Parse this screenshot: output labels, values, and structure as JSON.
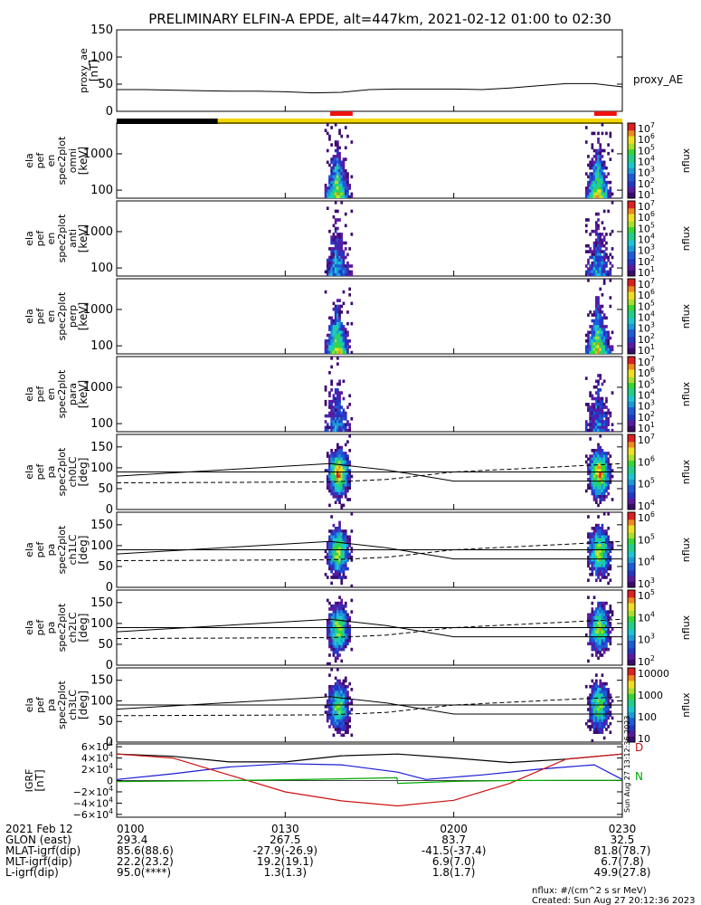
{
  "title": "PRELIMINARY ELFIN-A EPDE, alt=447km, 2021-02-12 01:00 to 02:30",
  "colors": {
    "frame": "#000000",
    "bar_black": "#000000",
    "bar_yellow": "#f2d600",
    "bar_red": "#ee1111",
    "igrf_x": "#000000",
    "igrf_y": "#1a1ad6",
    "igrf_z": "#cc1111",
    "igrf_d": "#00aa00",
    "spec_violet": "#3a0b6e",
    "spec_blue": "#1f5bd8",
    "spec_cyan": "#19c7d6",
    "spec_green": "#35d835",
    "spec_yellow": "#f0e020",
    "spec_red": "#e02020"
  },
  "chart_data": {
    "type": "multi-panel",
    "x_range": [
      "01:00",
      "02:30"
    ],
    "x_tick_labels": [
      "0100",
      "0130",
      "0200",
      "0230"
    ],
    "panels": [
      {
        "id": "proxy_ae",
        "type": "line",
        "ylabel": [
          "proxy_ae",
          "[nT]"
        ],
        "legend": "proxy_AE",
        "ylim": [
          0,
          150
        ],
        "yticks": [
          "150",
          "100",
          "50",
          "0"
        ],
        "ytick_values": [
          150,
          100,
          50,
          0
        ],
        "series": [
          {
            "x": [
              0,
              5,
              10,
              15,
              20,
              25,
              30,
              35,
              40,
              45,
              50,
              55,
              60,
              65,
              70,
              75,
              80,
              85,
              90
            ],
            "values": [
              40,
              40,
              39,
              38,
              37,
              37,
              36,
              34,
              35,
              40,
              41,
              41,
              41,
              40,
              43,
              47,
              51,
              51,
              45
            ]
          }
        ],
        "status_bar": [
          {
            "from": 0,
            "to": 18,
            "color": "black"
          },
          {
            "from": 18,
            "to": 90,
            "color": "yellow"
          }
        ],
        "red_marks": [
          [
            38,
            42
          ],
          [
            85,
            89
          ]
        ]
      },
      {
        "id": "en_omni",
        "type": "spectrogram",
        "ylabel": [
          "ela",
          "pef",
          "en",
          "spec2plot",
          "omni",
          "[keV]"
        ],
        "yticks": [
          "1000",
          "100"
        ],
        "ytick_values": [
          1000,
          100
        ],
        "ylim": [
          60,
          7000
        ],
        "log": true,
        "colorbar": {
          "label": "nflux",
          "ticks": [
            "10^7",
            "10^6",
            "10^5",
            "10^4",
            "10^3",
            "10^2",
            "10^1"
          ]
        }
      },
      {
        "id": "en_anti",
        "type": "spectrogram",
        "ylabel": [
          "ela",
          "pef",
          "en",
          "spec2plot",
          "anti",
          "[keV]"
        ],
        "yticks": [
          "1000",
          "100"
        ],
        "ytick_values": [
          1000,
          100
        ],
        "ylim": [
          60,
          7000
        ],
        "log": true,
        "colorbar": {
          "label": "nflux",
          "ticks": [
            "10^7",
            "10^6",
            "10^5",
            "10^4",
            "10^3",
            "10^2",
            "10^1"
          ]
        }
      },
      {
        "id": "en_perp",
        "type": "spectrogram",
        "ylabel": [
          "ela",
          "pef",
          "en",
          "spec2plot",
          "perp",
          "[keV]"
        ],
        "yticks": [
          "1000",
          "100"
        ],
        "ytick_values": [
          1000,
          100
        ],
        "ylim": [
          60,
          7000
        ],
        "log": true,
        "colorbar": {
          "label": "nflux",
          "ticks": [
            "10^7",
            "10^6",
            "10^5",
            "10^4",
            "10^3",
            "10^2",
            "10^1"
          ]
        }
      },
      {
        "id": "en_para",
        "type": "spectrogram",
        "ylabel": [
          "ela",
          "pef",
          "en",
          "spec2plot",
          "para",
          "[keV]"
        ],
        "yticks": [
          "1000",
          "100"
        ],
        "ytick_values": [
          1000,
          100
        ],
        "ylim": [
          60,
          7000
        ],
        "log": true,
        "colorbar": {
          "label": "nflux",
          "ticks": [
            "10^7",
            "10^6",
            "10^5",
            "10^4",
            "10^3",
            "10^2",
            "10^1"
          ]
        }
      },
      {
        "id": "pa_ch0",
        "type": "spectrogram",
        "ylabel": [
          "ela",
          "pef",
          "pa",
          "spec2plot",
          "ch0LC",
          "[deg]"
        ],
        "yticks": [
          "150",
          "100",
          "50",
          "0"
        ],
        "ytick_values": [
          150,
          100,
          50,
          0
        ],
        "ylim": [
          0,
          180
        ],
        "colorbar": {
          "label": "nflux",
          "ticks": [
            "10^7",
            "10^6",
            "10^5",
            "10^4"
          ]
        }
      },
      {
        "id": "pa_ch1",
        "type": "spectrogram",
        "ylabel": [
          "ela",
          "pef",
          "pa",
          "spec2plot",
          "ch1LC",
          "[deg]"
        ],
        "yticks": [
          "150",
          "100",
          "50",
          "0"
        ],
        "ytick_values": [
          150,
          100,
          50,
          0
        ],
        "ylim": [
          0,
          180
        ],
        "colorbar": {
          "label": "nflux",
          "ticks": [
            "10^6",
            "10^5",
            "10^4",
            "10^3"
          ]
        }
      },
      {
        "id": "pa_ch2",
        "type": "spectrogram",
        "ylabel": [
          "ela",
          "pef",
          "pa",
          "spec2plot",
          "ch2LC",
          "[deg]"
        ],
        "yticks": [
          "150",
          "100",
          "50",
          "0"
        ],
        "ytick_values": [
          150,
          100,
          50,
          0
        ],
        "ylim": [
          0,
          180
        ],
        "colorbar": {
          "label": "nflux",
          "ticks": [
            "10^5",
            "10^4",
            "10^3",
            "10^2"
          ]
        }
      },
      {
        "id": "pa_ch3",
        "type": "spectrogram",
        "ylabel": [
          "ela",
          "pef",
          "pa",
          "spec2plot",
          "ch3LC",
          "[deg]"
        ],
        "yticks": [
          "150",
          "100",
          "50",
          "0"
        ],
        "ytick_values": [
          150,
          100,
          50,
          0
        ],
        "ylim": [
          0,
          180
        ],
        "colorbar": {
          "label": "nflux",
          "ticks": [
            "10000",
            "1000",
            "100",
            "10"
          ]
        }
      },
      {
        "id": "igrf",
        "type": "line",
        "ylabel": [
          "IGRF",
          "[nT]"
        ],
        "ylim": [
          -65000,
          65000
        ],
        "yticks": [
          "6×10^4",
          "4×10^4",
          "2×10^4",
          "0",
          "−2×10^4",
          "−4×10^4",
          "−6×10^4"
        ],
        "ytick_values": [
          60000,
          40000,
          20000,
          0,
          -20000,
          -40000,
          -60000
        ],
        "right_labels": [
          "D",
          "N"
        ],
        "series": [
          {
            "color": "igrf_x",
            "x": [
              0,
              10,
              20,
              30,
              40,
              50,
              60,
              70,
              80,
              90
            ],
            "values": [
              47000,
              43000,
              33000,
              33000,
              44000,
              47000,
              40000,
              32000,
              38000,
              47000
            ]
          },
          {
            "color": "igrf_y",
            "x": [
              0,
              10,
              20,
              30,
              40,
              50,
              55,
              65,
              75,
              85,
              90
            ],
            "values": [
              2000,
              12000,
              24000,
              30000,
              28000,
              15000,
              2000,
              10000,
              20000,
              28000,
              2000
            ]
          },
          {
            "color": "igrf_z",
            "x": [
              0,
              10,
              20,
              30,
              40,
              50,
              60,
              70,
              80,
              90
            ],
            "values": [
              47000,
              40000,
              10000,
              -20000,
              -36000,
              -45000,
              -35000,
              -5000,
              38000,
              47000
            ]
          },
          {
            "color": "igrf_d",
            "x": [
              0,
              20,
              30,
              40,
              49.9,
              50,
              60,
              70,
              80,
              90
            ],
            "values": [
              -2000,
              0,
              1500,
              3000,
              5000,
              -5000,
              -1500,
              0,
              500,
              500
            ]
          }
        ]
      }
    ],
    "orbit_table": [
      {
        "label": "2021 Feb 12",
        "values": [
          "0100",
          "0130",
          "0200",
          "0230"
        ]
      },
      {
        "label": "GLON (east)",
        "values": [
          "293.4",
          "267.5",
          "83.7",
          "32.5"
        ]
      },
      {
        "label": "MLAT-igrf(dip)",
        "values": [
          "85.6(88.6)",
          "-27.9(-26.9)",
          "-41.5(-37.4)",
          "81.8(78.7)"
        ]
      },
      {
        "label": "MLT-igrf(dip)",
        "values": [
          "22.2(23.2)",
          "19.2(19.1)",
          "6.9(7.0)",
          "6.7(7.8)"
        ]
      },
      {
        "label": "L-igrf(dip)",
        "values": [
          "95.0(****)",
          "1.3(1.3)",
          "1.8(1.7)",
          "49.9(27.8)"
        ]
      }
    ],
    "footer": {
      "units": "nflux: #/(cm^2 s sr MeV)",
      "created": "Created: Sun Aug 27 20:12:36 2023",
      "side_stamp": "Sun Aug 27 13:12:36 2023"
    }
  }
}
